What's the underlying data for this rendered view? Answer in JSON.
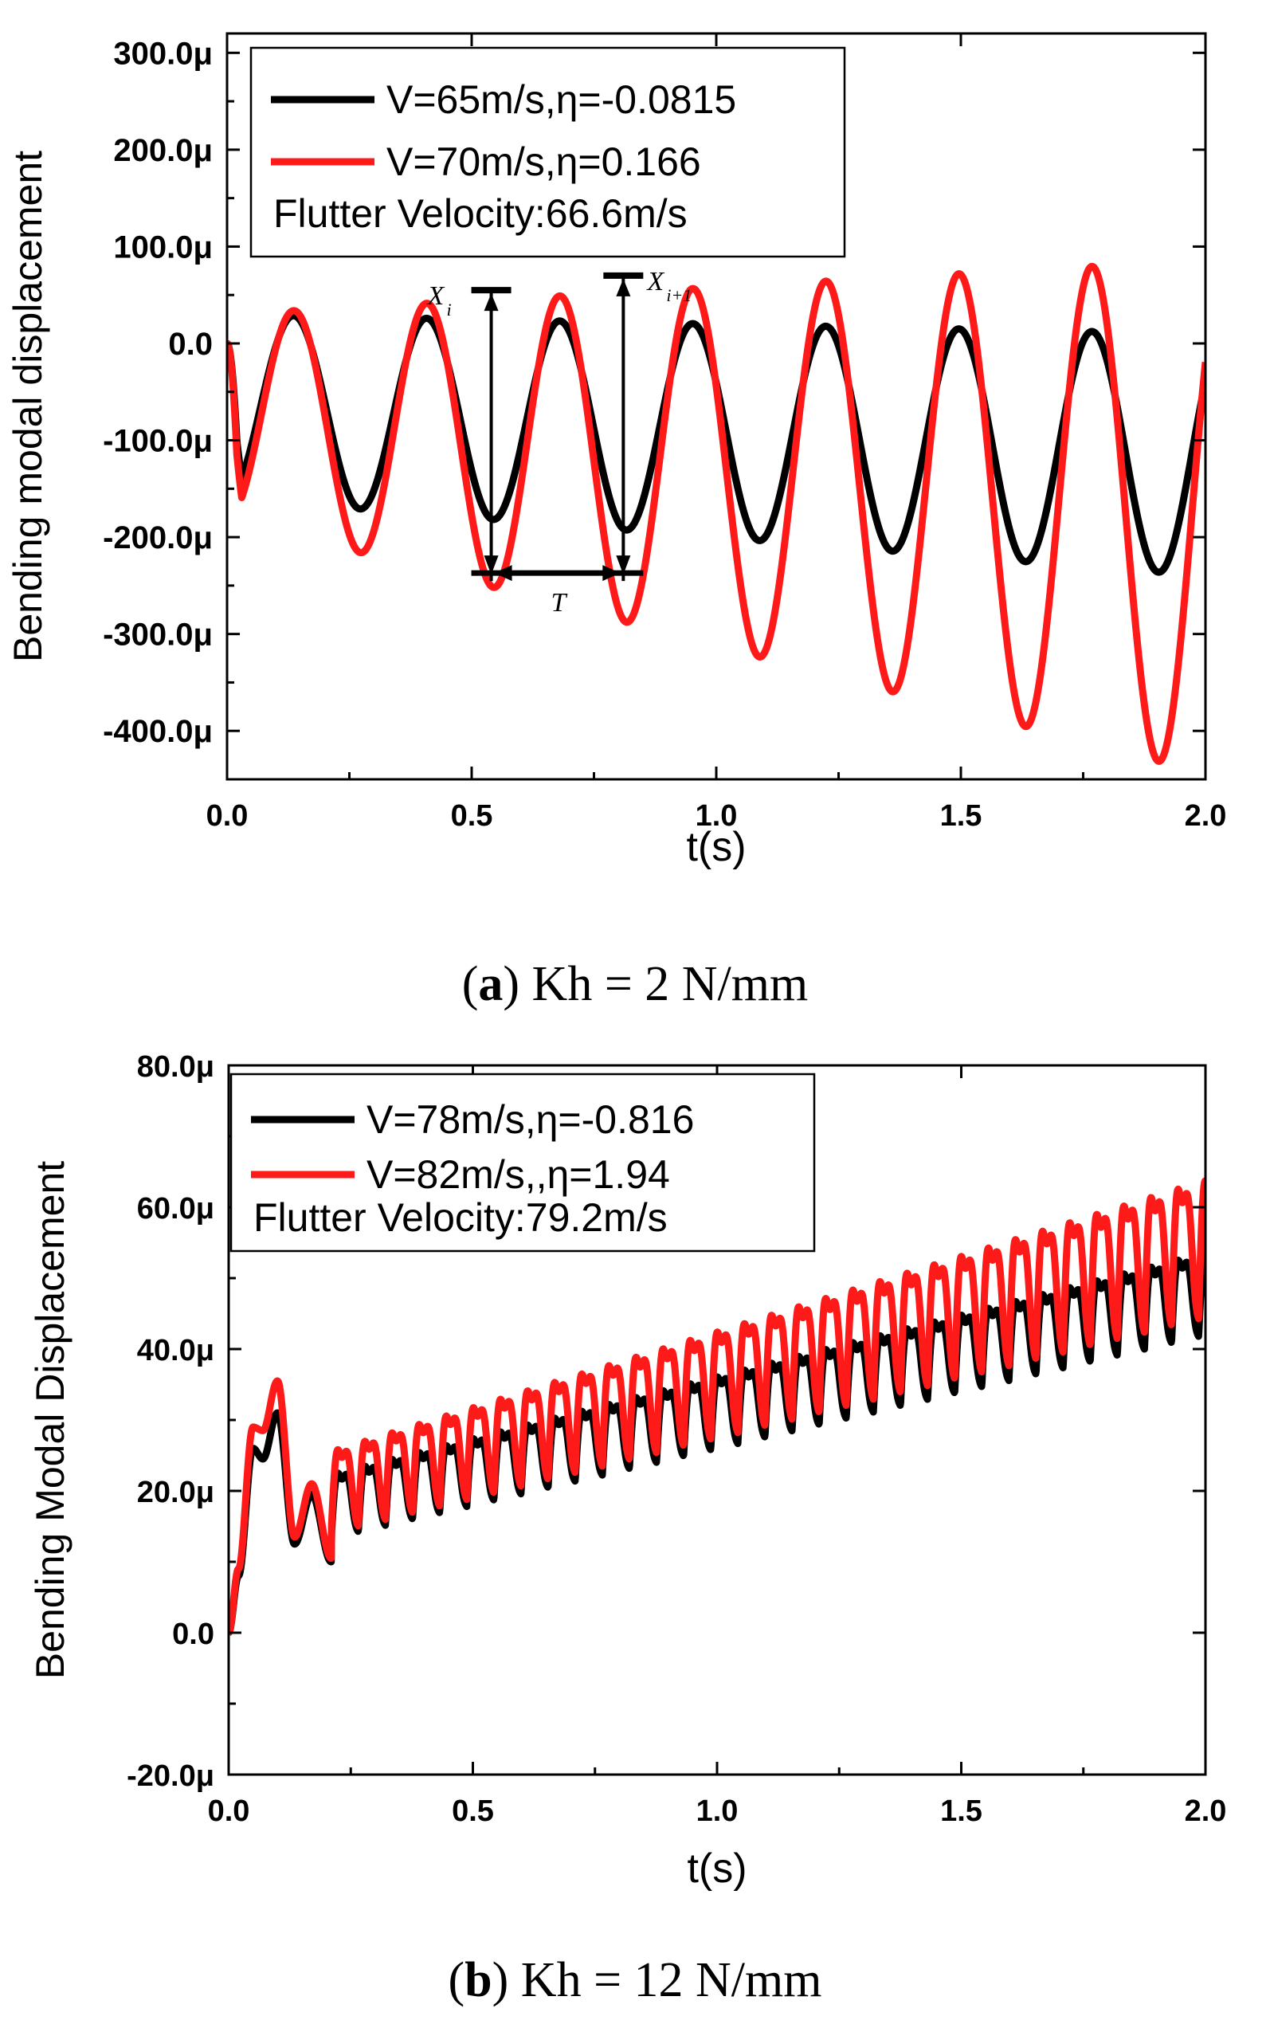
{
  "chart_data": [
    {
      "type": "line",
      "panel": "a",
      "caption_letter": "a",
      "caption_text": "Kh = 2 N/mm",
      "xlabel": "t(s)",
      "ylabel": "Bending modal displacement",
      "xlim": [
        0.0,
        2.0
      ],
      "ylim": [
        -450,
        320
      ],
      "x_ticks": [
        0.0,
        0.5,
        1.0,
        1.5,
        2.0
      ],
      "x_tick_labels": [
        "0.0",
        "0.5",
        "1.0",
        "1.5",
        "2.0"
      ],
      "y_ticks": [
        300,
        200,
        100,
        0,
        -100,
        -200,
        -300,
        -400
      ],
      "y_tick_labels": [
        "300.0μ",
        "200.0μ",
        "100.0μ",
        "0.0",
        "-100.0μ",
        "-200.0μ",
        "-300.0μ",
        "-400.0μ"
      ],
      "legend": {
        "position": "top-left",
        "entries": [
          "V=65m/s,η=-0.0815",
          "V=70m/s,η=0.166"
        ],
        "note": "Flutter Velocity:66.6m/s"
      },
      "series": [
        {
          "name": "V=65m/s,η=-0.0815",
          "color": "#000000",
          "params": {
            "period": 0.272,
            "center0": -65,
            "center_slope": -25,
            "amp0": 95,
            "amp_slope": 15
          }
        },
        {
          "name": "V=70m/s,η=0.166",
          "color": "#ff1a1a",
          "params": {
            "period": 0.272,
            "center0": -75,
            "center_slope": -52,
            "amp0": 105,
            "amp_slope": 80
          }
        }
      ],
      "annotations": {
        "xi_label": "X",
        "xi_sub": "i",
        "xi1_label": "X",
        "xi1_sub": "i+1",
        "t_label": "T",
        "xi_time": 0.54,
        "xi1_time": 0.81,
        "xi_peak": 55,
        "xi1_peak": 70,
        "t_level": -237
      }
    },
    {
      "type": "line",
      "panel": "b",
      "caption_letter": "b",
      "caption_text": "Kh = 12 N/mm",
      "xlabel": "t(s)",
      "ylabel": "Bending Modal Displacement",
      "xlim": [
        0.0,
        2.0
      ],
      "ylim": [
        -20,
        80
      ],
      "x_ticks": [
        0.0,
        0.5,
        1.0,
        1.5,
        2.0
      ],
      "x_tick_labels": [
        "0.0",
        "0.5",
        "1.0",
        "1.5",
        "2.0"
      ],
      "y_ticks": [
        80,
        60,
        40,
        20,
        0,
        -20
      ],
      "y_tick_labels": [
        "80.0μ",
        "60.0μ",
        "40.0μ",
        "20.0μ",
        "0.0",
        "-20.0μ"
      ],
      "legend": {
        "position": "top-left",
        "entries": [
          "V=78m/s,η=-0.816",
          "V=82m/s,,η=1.94"
        ],
        "note": "Flutter Velocity:79.2m/s"
      },
      "series": [
        {
          "name": "V=78m/s,η=-0.816",
          "color": "#000000",
          "params": {
            "period": 0.0555,
            "base0": 10,
            "base_slope": 16,
            "amp0": 2.5,
            "amp_slope": 1.5,
            "jump": 16,
            "early": [
              [
                0,
                0
              ],
              [
                0.02,
                8
              ],
              [
                0.05,
                26
              ],
              [
                0.07,
                24.5
              ],
              [
                0.1,
                31
              ],
              [
                0.135,
                12.5
              ],
              [
                0.17,
                19.5
              ],
              [
                0.21,
                10
              ]
            ]
          }
        },
        {
          "name": "V=82m/s,,η=1.94",
          "color": "#ff1a1a",
          "params": {
            "period": 0.0555,
            "base0": 10.5,
            "base_slope": 17,
            "amp0": 4.5,
            "amp_slope": 4.5,
            "jump": 16,
            "early": [
              [
                0,
                0
              ],
              [
                0.02,
                9
              ],
              [
                0.05,
                29
              ],
              [
                0.07,
                28.5
              ],
              [
                0.1,
                35.5
              ],
              [
                0.135,
                13.5
              ],
              [
                0.17,
                21
              ],
              [
                0.21,
                10.5
              ]
            ]
          }
        }
      ]
    }
  ]
}
